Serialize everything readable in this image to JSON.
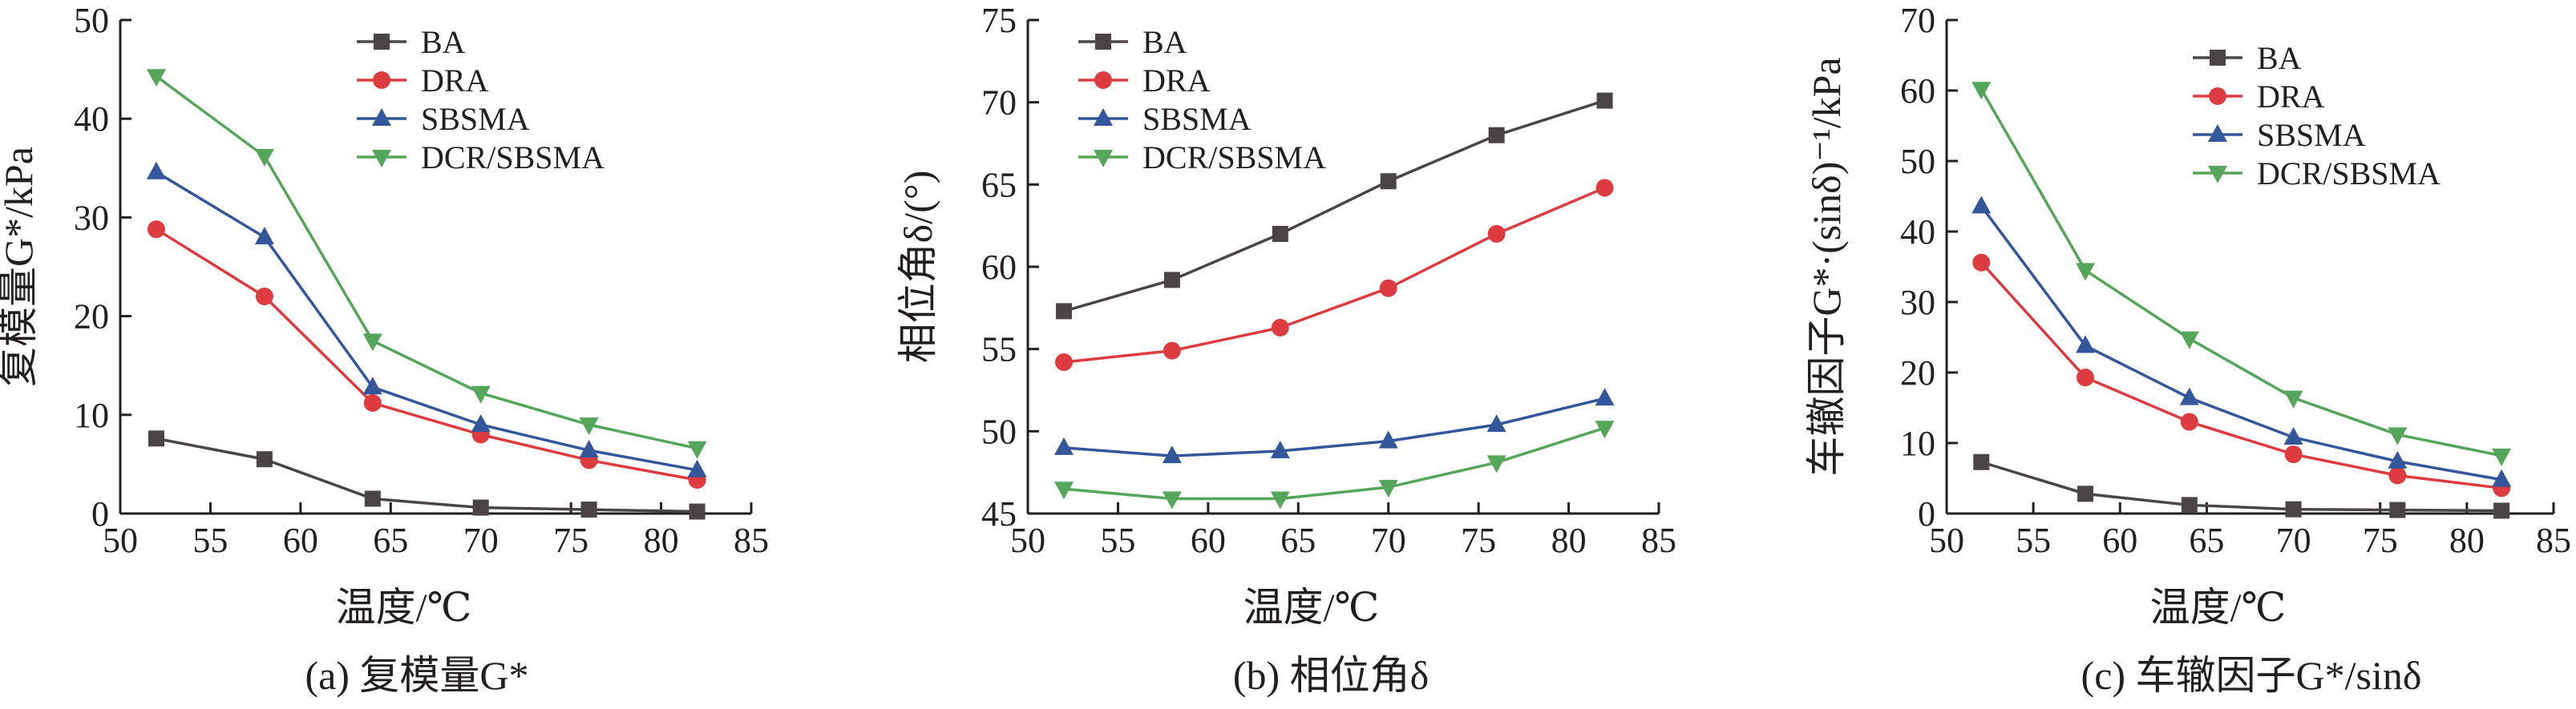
{
  "colors": {
    "BA": "#4a4446",
    "DRA": "#dd3b3f",
    "SBSMA": "#34569b",
    "DCR/SBSMA": "#55a55b",
    "axis": "#231f20"
  },
  "chart_data": [
    {
      "type": "line",
      "caption": "(a) 复模量G*",
      "xlabel": "温度/℃",
      "ylabel": "复模量G*/kPa",
      "xlim": [
        50,
        85
      ],
      "ylim": [
        0,
        50
      ],
      "xticks": [
        50,
        55,
        60,
        65,
        70,
        75,
        80,
        85
      ],
      "yticks": [
        0,
        10,
        20,
        30,
        40,
        50
      ],
      "legend": "top-right",
      "grid": false,
      "x": [
        52,
        58,
        64,
        70,
        76,
        82
      ],
      "series": [
        {
          "name": "BA",
          "marker": "square",
          "values": [
            7.6,
            5.5,
            1.5,
            0.6,
            0.4,
            0.2
          ]
        },
        {
          "name": "DRA",
          "marker": "circle",
          "values": [
            28.8,
            22,
            11.2,
            8,
            5.4,
            3.4
          ]
        },
        {
          "name": "SBSMA",
          "marker": "triangle-up",
          "values": [
            34.6,
            28,
            12.8,
            9,
            6.4,
            4.4
          ]
        },
        {
          "name": "DCR/SBSMA",
          "marker": "triangle-down",
          "values": [
            44.3,
            36.2,
            17.5,
            12.2,
            9,
            6.6
          ]
        }
      ]
    },
    {
      "type": "line",
      "caption": "(b) 相位角δ",
      "xlabel": "温度/℃",
      "ylabel": "相位角δ/(°)",
      "xlim": [
        50,
        85
      ],
      "ylim": [
        45,
        75
      ],
      "xticks": [
        50,
        55,
        60,
        65,
        70,
        75,
        80,
        85
      ],
      "yticks": [
        45,
        50,
        55,
        60,
        65,
        70,
        75
      ],
      "legend": "top-left",
      "grid": false,
      "x": [
        52,
        58,
        64,
        70,
        76,
        82
      ],
      "series": [
        {
          "name": "BA",
          "marker": "square",
          "values": [
            57.3,
            59.2,
            62,
            65.2,
            68,
            70.1
          ]
        },
        {
          "name": "DRA",
          "marker": "circle",
          "values": [
            54.2,
            54.9,
            56.3,
            58.7,
            62,
            64.8
          ]
        },
        {
          "name": "SBSMA",
          "marker": "triangle-up",
          "values": [
            49,
            48.5,
            48.8,
            49.4,
            50.4,
            52
          ]
        },
        {
          "name": "DCR/SBSMA",
          "marker": "triangle-down",
          "values": [
            46.5,
            45.9,
            45.9,
            46.6,
            48.1,
            50.2
          ]
        }
      ]
    },
    {
      "type": "line",
      "caption": "(c) 车辙因子G*/sinδ",
      "xlabel": "温度/℃",
      "ylabel": "车辙因子G*·(sinδ)⁻¹/kPa",
      "xlim": [
        50,
        85
      ],
      "ylim": [
        0,
        70
      ],
      "xticks": [
        50,
        55,
        60,
        65,
        70,
        75,
        80,
        85
      ],
      "yticks": [
        0,
        10,
        20,
        30,
        40,
        50,
        60,
        70
      ],
      "legend": "top-right",
      "grid": false,
      "x": [
        52,
        58,
        64,
        70,
        76,
        82
      ],
      "series": [
        {
          "name": "BA",
          "marker": "square",
          "values": [
            7.3,
            2.8,
            1.2,
            0.6,
            0.5,
            0.4
          ]
        },
        {
          "name": "DRA",
          "marker": "circle",
          "values": [
            35.6,
            19.3,
            13,
            8.4,
            5.4,
            3.6
          ]
        },
        {
          "name": "SBSMA",
          "marker": "triangle-up",
          "values": [
            43.6,
            23.8,
            16.4,
            10.8,
            7.4,
            4.8
          ]
        },
        {
          "name": "DCR/SBSMA",
          "marker": "triangle-down",
          "values": [
            60.2,
            34.5,
            24.8,
            16.4,
            11.2,
            8.2
          ]
        }
      ]
    }
  ]
}
